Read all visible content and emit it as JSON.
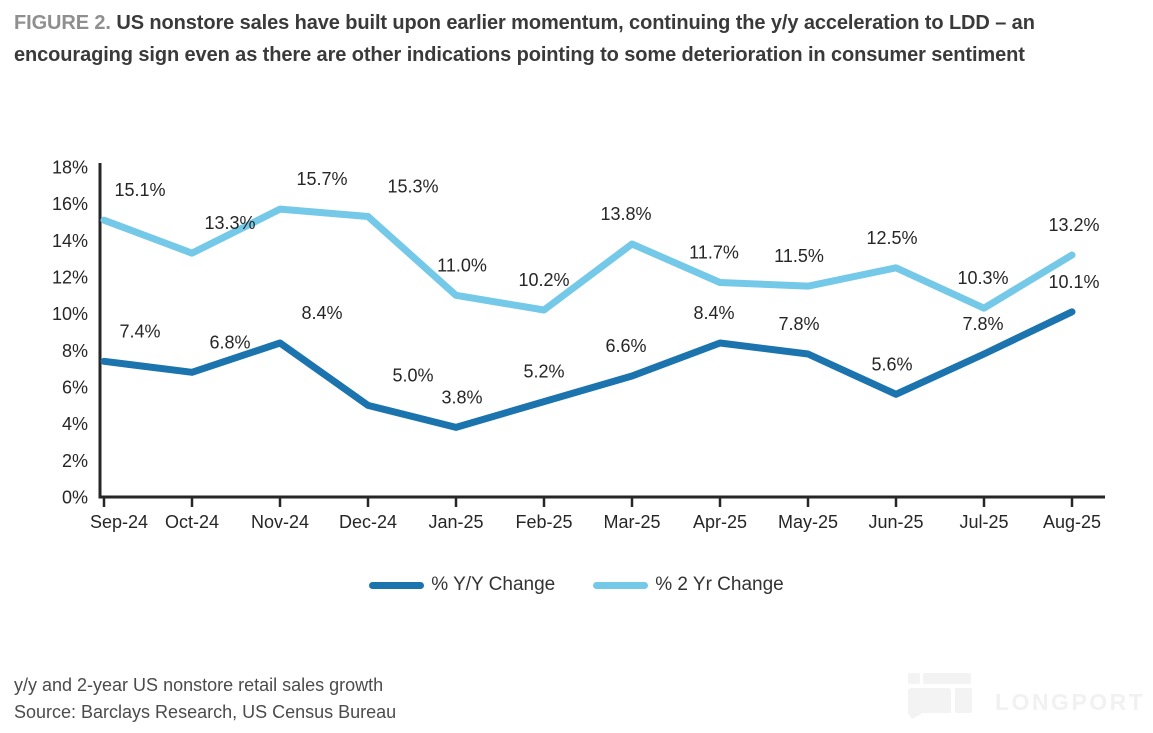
{
  "figure": {
    "label": "FIGURE 2.",
    "title": " US nonstore sales have built upon earlier momentum, continuing the y/y acceleration to LDD – an encouraging sign even as there are other indications pointing to some deterioration in consumer sentiment"
  },
  "chart_data": {
    "type": "line",
    "categories": [
      "Sep-24",
      "Oct-24",
      "Nov-24",
      "Dec-24",
      "Jan-25",
      "Feb-25",
      "Mar-25",
      "Apr-25",
      "May-25",
      "Jun-25",
      "Jul-25",
      "Aug-25"
    ],
    "series": [
      {
        "name": "% Y/Y Change",
        "color": "#1b74ae",
        "values": [
          7.4,
          6.8,
          8.4,
          5.0,
          3.8,
          5.2,
          6.6,
          8.4,
          7.8,
          5.6,
          7.8,
          10.1
        ]
      },
      {
        "name": "% 2 Yr Change",
        "color": "#74c8e8",
        "values": [
          15.1,
          13.3,
          15.7,
          15.3,
          11.0,
          10.2,
          13.8,
          11.7,
          11.5,
          12.5,
          10.3,
          13.2
        ]
      }
    ],
    "title": "",
    "xlabel": "",
    "ylabel": "",
    "ylim": [
      0,
      18
    ],
    "y_tick_step": 2,
    "y_tick_suffix": "%",
    "grid": false,
    "data_labels": true,
    "legend_position": "bottom",
    "axis_color": "#262626"
  },
  "footer": {
    "caption": "y/y and 2-year US nonstore retail sales growth",
    "source": "Source: Barclays Research, US Census Bureau"
  },
  "watermark": {
    "text": "LONGPORT"
  }
}
